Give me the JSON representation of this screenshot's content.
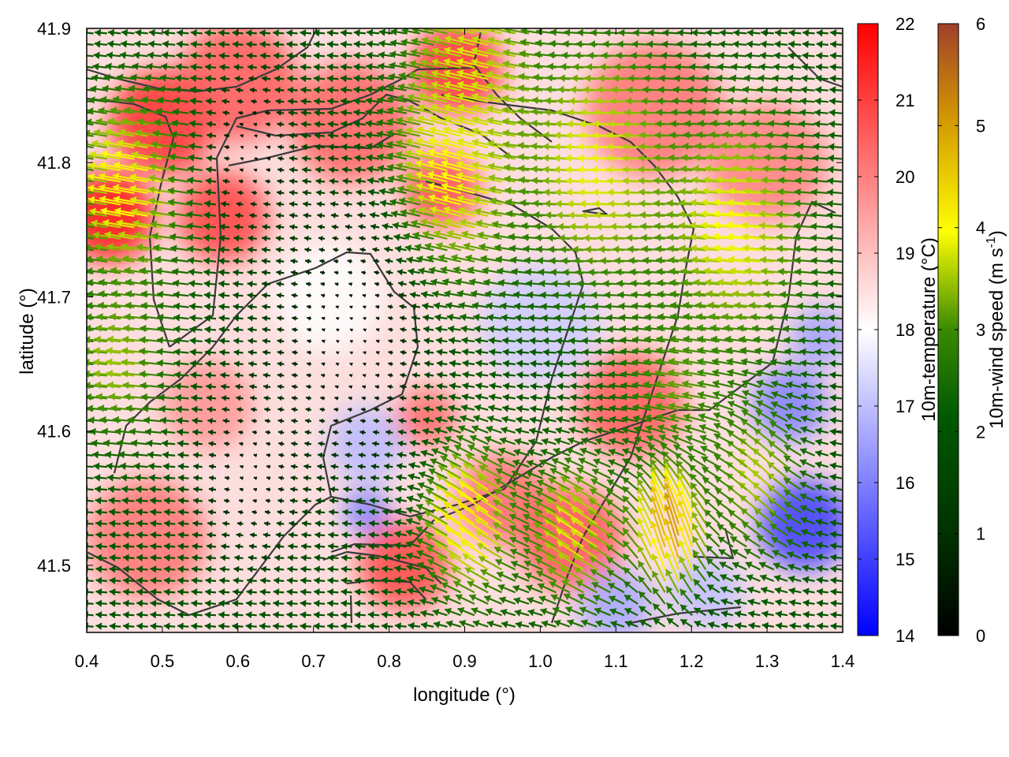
{
  "chart_data": {
    "type": "heatmap",
    "title": "",
    "xlabel": "longitude (°)",
    "ylabel": "latitude (°)",
    "xlim": [
      0.4,
      1.4
    ],
    "ylim": [
      41.45,
      41.9
    ],
    "x_ticks": [
      "0.4",
      "0.5",
      "0.6",
      "0.7",
      "0.8",
      "0.9",
      "1.0",
      "1.1",
      "1.2",
      "1.3",
      "1.4"
    ],
    "y_ticks": [
      "41.5",
      "41.6",
      "41.7",
      "41.8",
      "41.9"
    ],
    "temperature_scale": {
      "label": "10m-temperature (°C)",
      "range": [
        14,
        22
      ],
      "ticks": [
        "14",
        "15",
        "16",
        "17",
        "18",
        "19",
        "20",
        "21",
        "22"
      ],
      "colors": [
        "#0000ff",
        "#ffffff",
        "#ff0000"
      ]
    },
    "wind_scale": {
      "label_main": "10m-wind speed (m s",
      "label_sup": "-1",
      "label_end": ")",
      "range": [
        0,
        6
      ],
      "ticks": [
        "0",
        "1",
        "2",
        "3",
        "4",
        "5",
        "6"
      ],
      "colors": [
        "#000000",
        "#005500",
        "#3a8a00",
        "#ffff00",
        "#d49a00",
        "#a0402a"
      ]
    },
    "temperature_blobs": [
      {
        "lon": 0.5,
        "lat": 41.83,
        "r": 0.07,
        "temp": 21.3
      },
      {
        "lon": 0.43,
        "lat": 41.76,
        "r": 0.06,
        "temp": 21.8
      },
      {
        "lon": 0.58,
        "lat": 41.76,
        "r": 0.06,
        "temp": 21.0
      },
      {
        "lon": 0.6,
        "lat": 41.86,
        "r": 0.08,
        "temp": 20.6
      },
      {
        "lon": 0.75,
        "lat": 41.83,
        "r": 0.08,
        "temp": 20.5
      },
      {
        "lon": 0.89,
        "lat": 41.87,
        "r": 0.06,
        "temp": 21.2
      },
      {
        "lon": 0.87,
        "lat": 41.78,
        "r": 0.05,
        "temp": 20.8
      },
      {
        "lon": 1.15,
        "lat": 41.84,
        "r": 0.09,
        "temp": 20.2
      },
      {
        "lon": 1.3,
        "lat": 41.8,
        "r": 0.08,
        "temp": 20.0
      },
      {
        "lon": 1.12,
        "lat": 41.62,
        "r": 0.07,
        "temp": 20.6
      },
      {
        "lon": 1.04,
        "lat": 41.52,
        "r": 0.07,
        "temp": 20.7
      },
      {
        "lon": 0.95,
        "lat": 41.55,
        "r": 0.06,
        "temp": 20.3
      },
      {
        "lon": 0.82,
        "lat": 41.5,
        "r": 0.06,
        "temp": 20.9
      },
      {
        "lon": 0.48,
        "lat": 41.52,
        "r": 0.08,
        "temp": 20.2
      },
      {
        "lon": 0.56,
        "lat": 41.62,
        "r": 0.06,
        "temp": 19.7
      },
      {
        "lon": 0.85,
        "lat": 41.61,
        "r": 0.04,
        "temp": 20.4
      },
      {
        "lon": 1.0,
        "lat": 41.68,
        "r": 0.08,
        "temp": 17.2
      },
      {
        "lon": 0.77,
        "lat": 41.59,
        "r": 0.05,
        "temp": 16.9
      },
      {
        "lon": 0.77,
        "lat": 41.54,
        "r": 0.03,
        "temp": 15.9
      },
      {
        "lon": 1.35,
        "lat": 41.53,
        "r": 0.06,
        "temp": 14.9
      },
      {
        "lon": 1.33,
        "lat": 41.62,
        "r": 0.05,
        "temp": 16.0
      },
      {
        "lon": 1.37,
        "lat": 41.67,
        "r": 0.04,
        "temp": 16.5
      },
      {
        "lon": 1.1,
        "lat": 41.47,
        "r": 0.05,
        "temp": 16.6
      },
      {
        "lon": 1.22,
        "lat": 41.48,
        "r": 0.05,
        "temp": 17.0
      },
      {
        "lon": 0.72,
        "lat": 41.7,
        "r": 0.07,
        "temp": 18.0
      }
    ],
    "wind_field": {
      "default_u": -1.2,
      "default_v": 0.1,
      "regions": [
        {
          "lon": 0.47,
          "lat": 41.78,
          "r": 0.07,
          "u": -3.8,
          "v": 0.7
        },
        {
          "lon": 0.46,
          "lat": 41.65,
          "r": 0.06,
          "u": -3.0,
          "v": 0.3
        },
        {
          "lon": 0.9,
          "lat": 41.79,
          "r": 0.08,
          "u": -3.8,
          "v": 1.0
        },
        {
          "lon": 0.93,
          "lat": 41.87,
          "r": 0.08,
          "u": -3.3,
          "v": 0.8
        },
        {
          "lon": 1.1,
          "lat": 41.8,
          "r": 0.1,
          "u": -3.5,
          "v": 0.1
        },
        {
          "lon": 1.28,
          "lat": 41.75,
          "r": 0.09,
          "u": -3.6,
          "v": 0.3
        },
        {
          "lon": 1.2,
          "lat": 41.63,
          "r": 0.07,
          "u": -2.6,
          "v": 0.4
        },
        {
          "lon": 0.92,
          "lat": 41.53,
          "r": 0.06,
          "u": -3.3,
          "v": 2.3
        },
        {
          "lon": 1.06,
          "lat": 41.52,
          "r": 0.06,
          "u": -2.9,
          "v": 1.9
        },
        {
          "lon": 1.18,
          "lat": 41.52,
          "r": 0.05,
          "u": -1.4,
          "v": 4.6
        },
        {
          "lon": 1.3,
          "lat": 41.56,
          "r": 0.06,
          "u": -2.3,
          "v": 2.1
        },
        {
          "lon": 0.75,
          "lat": 41.67,
          "r": 0.1,
          "u": -0.2,
          "v": 0.1
        },
        {
          "lon": 0.62,
          "lat": 41.57,
          "r": 0.06,
          "u": -0.3,
          "v": 0.1
        },
        {
          "lon": 0.62,
          "lat": 41.81,
          "r": 0.05,
          "u": -0.2,
          "v": 0.1
        }
      ]
    }
  }
}
